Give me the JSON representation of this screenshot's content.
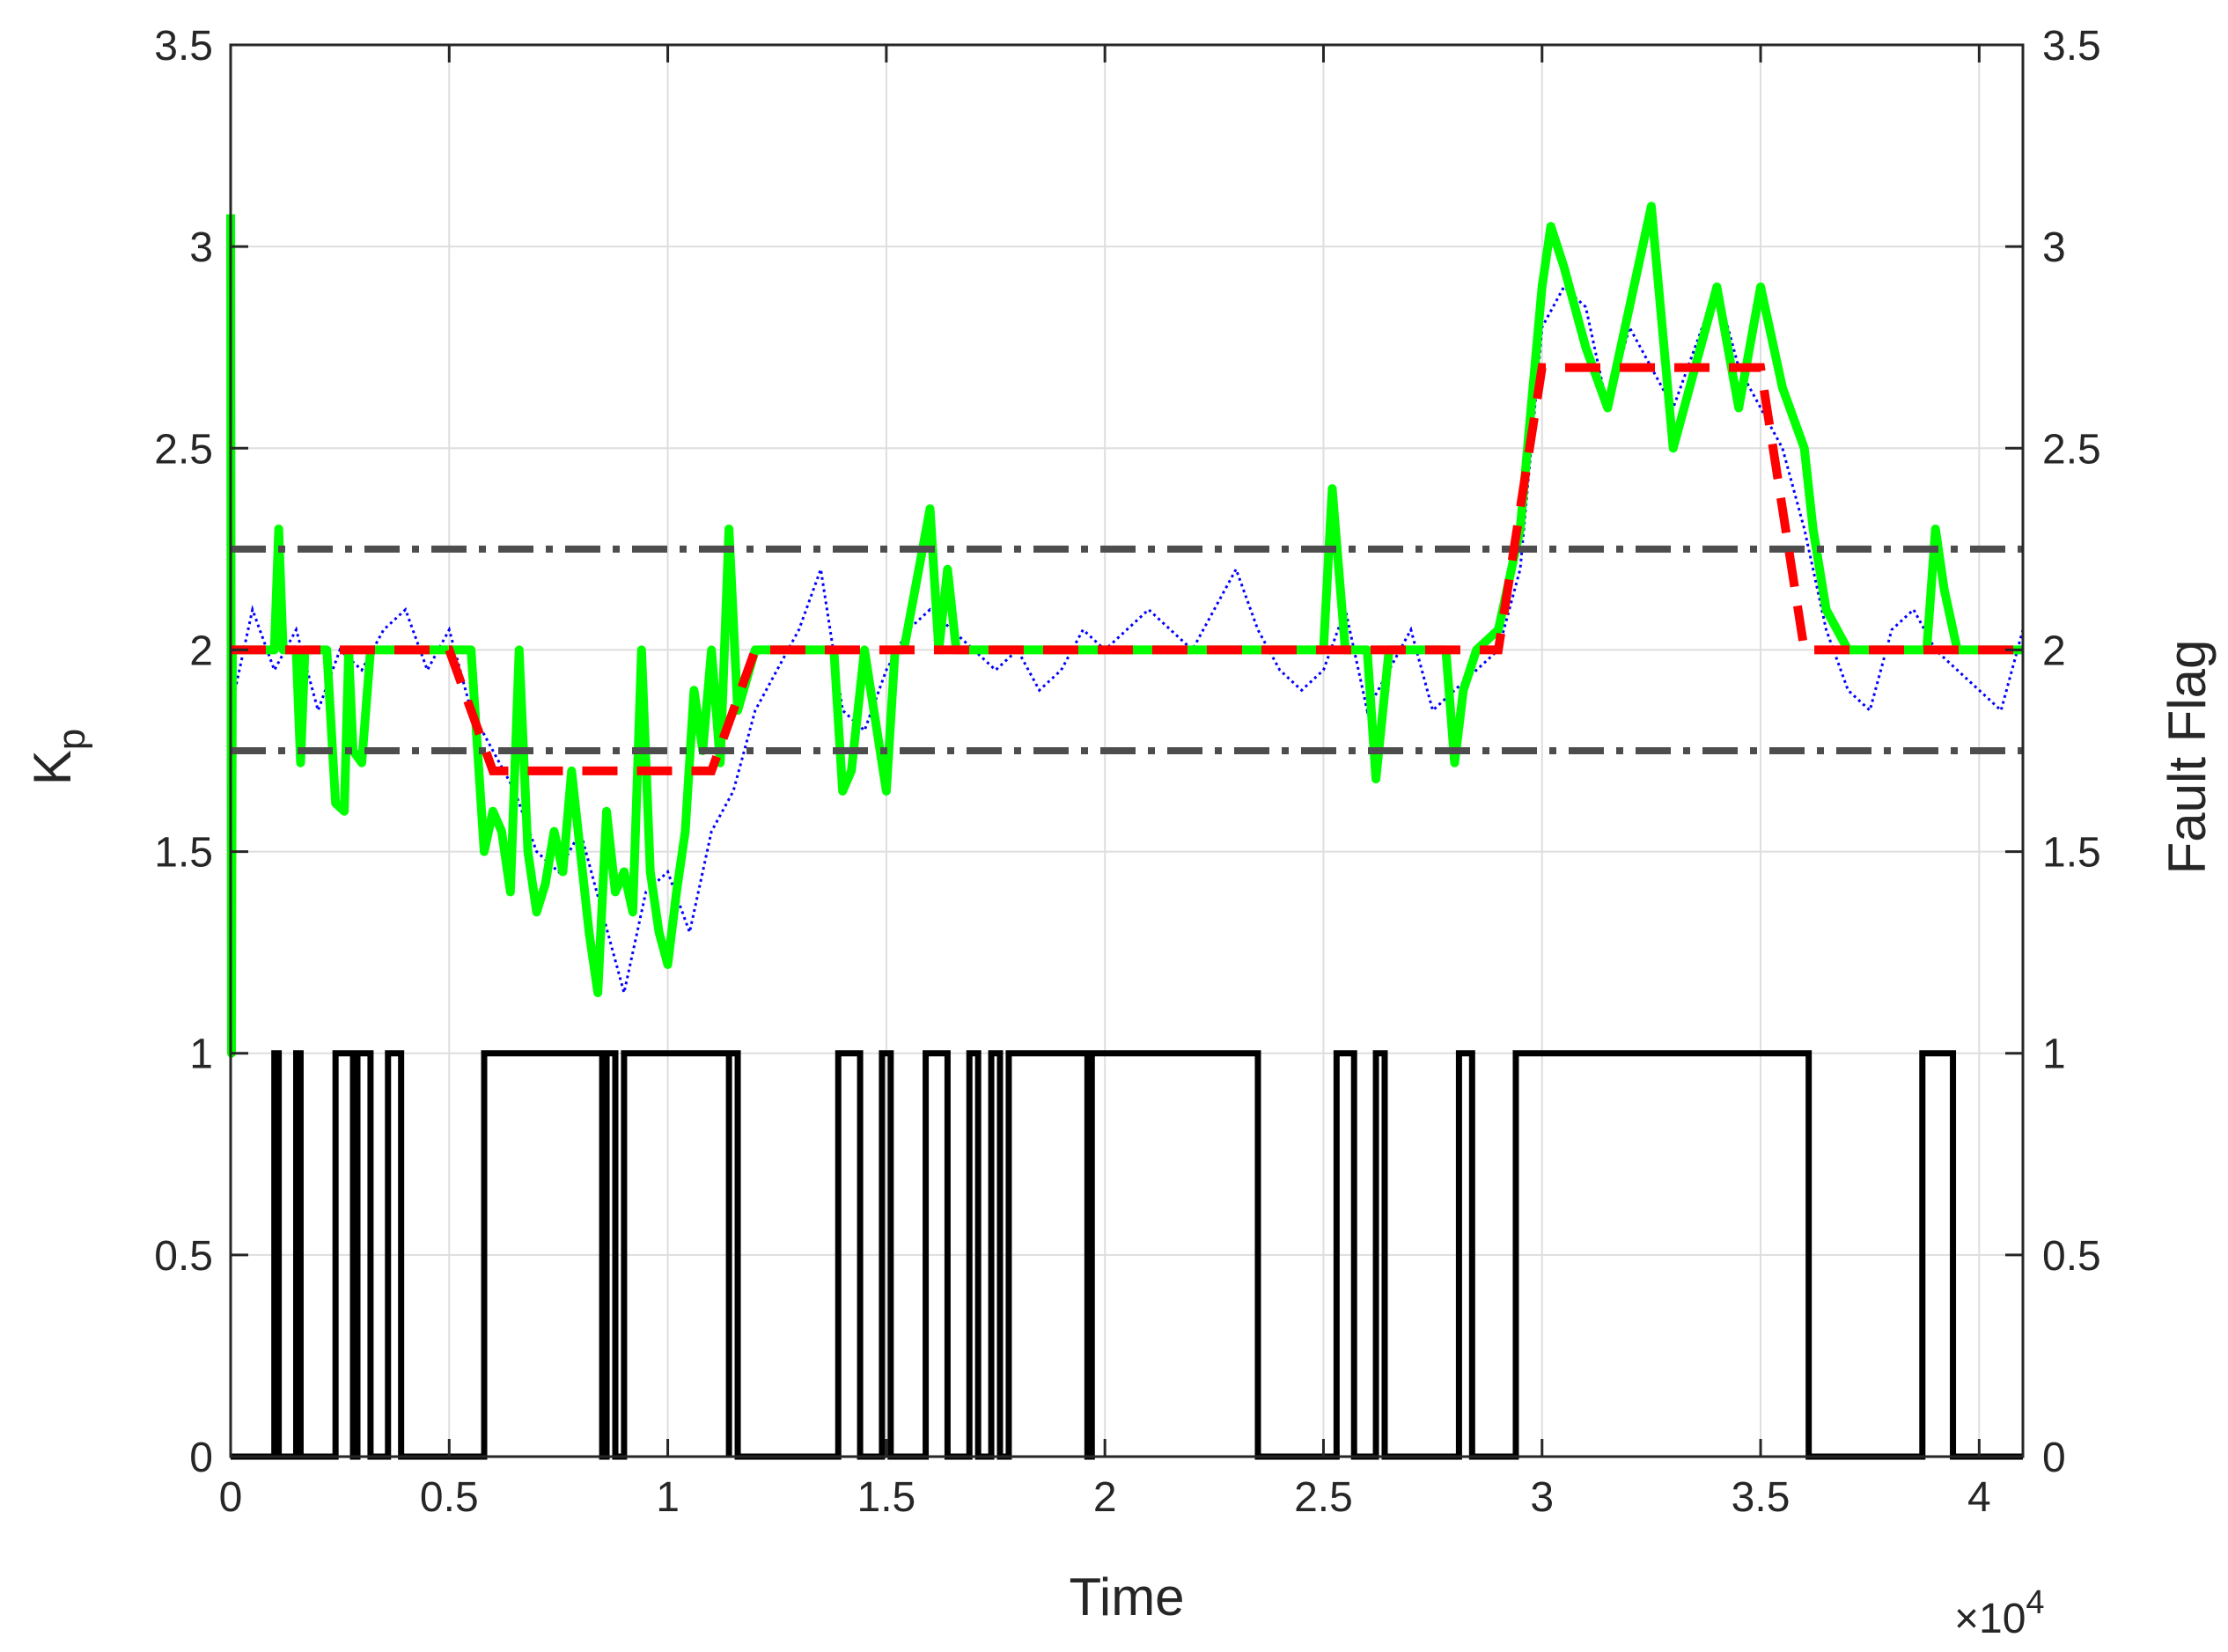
{
  "chart_data": {
    "type": "line",
    "title": "",
    "xlabel": "Time",
    "x_exponent_label": "×10",
    "x_exponent_power": "4",
    "ylabel_left_main": "K",
    "ylabel_left_sub": "p",
    "ylabel_right": "Fault Flag",
    "xlim": [
      0,
      4.1
    ],
    "ylim": [
      0,
      3.5
    ],
    "x_unit_note": "x values in units of 10^4",
    "xticks": [
      0,
      0.5,
      1,
      1.5,
      2,
      2.5,
      3,
      3.5,
      4
    ],
    "xtick_labels": [
      "0",
      "0.5",
      "1",
      "1.5",
      "2",
      "2.5",
      "3",
      "3.5",
      "4"
    ],
    "yticks": [
      0,
      0.5,
      1,
      1.5,
      2,
      2.5,
      3,
      3.5
    ],
    "ytick_labels": [
      "0",
      "0.5",
      "1",
      "1.5",
      "2",
      "2.5",
      "3",
      "3.5"
    ],
    "grid": true,
    "colors": {
      "measured": "#0000ff",
      "estimated": "#00ff00",
      "reference": "#ff0000",
      "threshold": "#4d4d4d",
      "flag": "#000000",
      "grid": "#dedede",
      "axis": "#262626"
    },
    "thresholds": [
      2.25,
      1.75
    ],
    "series": [
      {
        "style": "dotted-blue",
        "x": [
          0.01,
          0.05,
          0.1,
          0.15,
          0.2,
          0.25,
          0.3,
          0.35,
          0.4,
          0.45,
          0.5,
          0.55,
          0.6,
          0.65,
          0.7,
          0.75,
          0.8,
          0.85,
          0.9,
          0.95,
          1.0,
          1.05,
          1.1,
          1.15,
          1.2,
          1.25,
          1.3,
          1.35,
          1.4,
          1.45,
          1.5,
          1.55,
          1.6,
          1.65,
          1.7,
          1.75,
          1.8,
          1.85,
          1.9,
          1.95,
          2.0,
          2.05,
          2.1,
          2.15,
          2.2,
          2.25,
          2.3,
          2.35,
          2.4,
          2.45,
          2.5,
          2.55,
          2.6,
          2.65,
          2.7,
          2.75,
          2.8,
          2.85,
          2.9,
          2.95,
          3.0,
          3.05,
          3.1,
          3.15,
          3.2,
          3.25,
          3.3,
          3.35,
          3.4,
          3.45,
          3.5,
          3.55,
          3.6,
          3.65,
          3.7,
          3.75,
          3.8,
          3.85,
          3.9,
          3.95,
          4.0,
          4.05,
          4.1
        ],
        "y": [
          1.9,
          2.1,
          1.95,
          2.05,
          1.85,
          2.0,
          1.95,
          2.05,
          2.1,
          1.95,
          2.05,
          1.85,
          1.75,
          1.65,
          1.5,
          1.45,
          1.55,
          1.35,
          1.15,
          1.4,
          1.45,
          1.3,
          1.55,
          1.65,
          1.85,
          1.95,
          2.05,
          2.2,
          1.85,
          1.8,
          1.95,
          2.05,
          2.1,
          2.05,
          2.0,
          1.95,
          2.0,
          1.9,
          1.95,
          2.05,
          2.0,
          2.05,
          2.1,
          2.05,
          2.0,
          2.1,
          2.2,
          2.05,
          1.95,
          1.9,
          1.95,
          2.1,
          1.85,
          1.95,
          2.05,
          1.85,
          1.9,
          1.95,
          2.0,
          2.2,
          2.8,
          2.9,
          2.85,
          2.6,
          2.8,
          2.7,
          2.6,
          2.75,
          2.9,
          2.7,
          2.6,
          2.5,
          2.3,
          2.05,
          1.9,
          1.85,
          2.05,
          2.1,
          2.0,
          1.95,
          1.9,
          1.85,
          2.05
        ]
      },
      {
        "style": "solid-green",
        "x": [
          0.0,
          0.002,
          0.004,
          0.01,
          0.05,
          0.1,
          0.11,
          0.12,
          0.15,
          0.16,
          0.17,
          0.2,
          0.22,
          0.24,
          0.26,
          0.27,
          0.28,
          0.3,
          0.32,
          0.35,
          0.4,
          0.45,
          0.5,
          0.55,
          0.58,
          0.6,
          0.62,
          0.64,
          0.66,
          0.68,
          0.7,
          0.72,
          0.74,
          0.76,
          0.78,
          0.8,
          0.82,
          0.84,
          0.86,
          0.88,
          0.9,
          0.92,
          0.94,
          0.96,
          0.98,
          1.0,
          1.02,
          1.04,
          1.06,
          1.08,
          1.1,
          1.12,
          1.14,
          1.16,
          1.2,
          1.3,
          1.38,
          1.4,
          1.42,
          1.45,
          1.5,
          1.52,
          1.54,
          1.6,
          1.62,
          1.64,
          1.66,
          1.7,
          1.72,
          1.8,
          2.0,
          2.2,
          2.4,
          2.5,
          2.52,
          2.55,
          2.6,
          2.62,
          2.65,
          2.7,
          2.78,
          2.8,
          2.82,
          2.85,
          2.9,
          2.95,
          3.0,
          3.02,
          3.05,
          3.1,
          3.15,
          3.2,
          3.25,
          3.3,
          3.35,
          3.4,
          3.45,
          3.5,
          3.55,
          3.6,
          3.62,
          3.65,
          3.7,
          3.8,
          3.88,
          3.9,
          3.92,
          3.95,
          4.0,
          4.1
        ],
        "y": [
          3.08,
          1.0,
          2.0,
          2.0,
          2.0,
          2.0,
          2.3,
          2.0,
          2.0,
          1.72,
          2.0,
          2.0,
          2.0,
          1.62,
          1.6,
          2.0,
          1.75,
          1.72,
          2.0,
          2.0,
          2.0,
          2.0,
          2.0,
          2.0,
          1.5,
          1.6,
          1.55,
          1.4,
          2.0,
          1.5,
          1.35,
          1.42,
          1.55,
          1.45,
          1.7,
          1.5,
          1.3,
          1.15,
          1.6,
          1.4,
          1.45,
          1.35,
          2.0,
          1.45,
          1.3,
          1.22,
          1.4,
          1.55,
          1.9,
          1.75,
          2.0,
          1.72,
          2.3,
          1.85,
          2.0,
          2.0,
          2.0,
          1.65,
          1.7,
          2.0,
          1.65,
          2.0,
          2.0,
          2.35,
          2.0,
          2.2,
          2.0,
          2.0,
          2.0,
          2.0,
          2.0,
          2.0,
          2.0,
          2.0,
          2.4,
          2.0,
          2.0,
          1.68,
          2.0,
          2.0,
          2.0,
          1.72,
          1.9,
          2.0,
          2.05,
          2.3,
          2.9,
          3.05,
          2.95,
          2.75,
          2.6,
          2.85,
          3.1,
          2.5,
          2.7,
          2.9,
          2.6,
          2.9,
          2.65,
          2.5,
          2.3,
          2.1,
          2.0,
          2.0,
          2.0,
          2.3,
          2.15,
          2.0,
          2.0,
          2.0
        ]
      },
      {
        "style": "dashed-red",
        "x": [
          0.0,
          0.5,
          0.6,
          1.1,
          1.2,
          2.9,
          3.0,
          3.5,
          3.6,
          4.1
        ],
        "y": [
          2.0,
          2.0,
          1.7,
          1.7,
          2.0,
          2.0,
          2.7,
          2.7,
          2.0,
          2.0
        ]
      },
      {
        "style": "solid-black-flag",
        "segments": [
          [
            0.1,
            0.11
          ],
          [
            0.15,
            0.16
          ],
          [
            0.24,
            0.28
          ],
          [
            0.29,
            0.32
          ],
          [
            0.36,
            0.39
          ],
          [
            0.58,
            0.85
          ],
          [
            0.86,
            0.88
          ],
          [
            0.9,
            1.14
          ],
          [
            1.14,
            1.16
          ],
          [
            1.39,
            1.44
          ],
          [
            1.49,
            1.51
          ],
          [
            1.59,
            1.64
          ],
          [
            1.69,
            1.71
          ],
          [
            1.74,
            1.76
          ],
          [
            1.78,
            1.96
          ],
          [
            1.97,
            2.35
          ],
          [
            2.53,
            2.57
          ],
          [
            2.62,
            2.64
          ],
          [
            2.81,
            2.84
          ],
          [
            2.94,
            3.61
          ],
          [
            3.87,
            3.94
          ]
        ]
      }
    ]
  }
}
